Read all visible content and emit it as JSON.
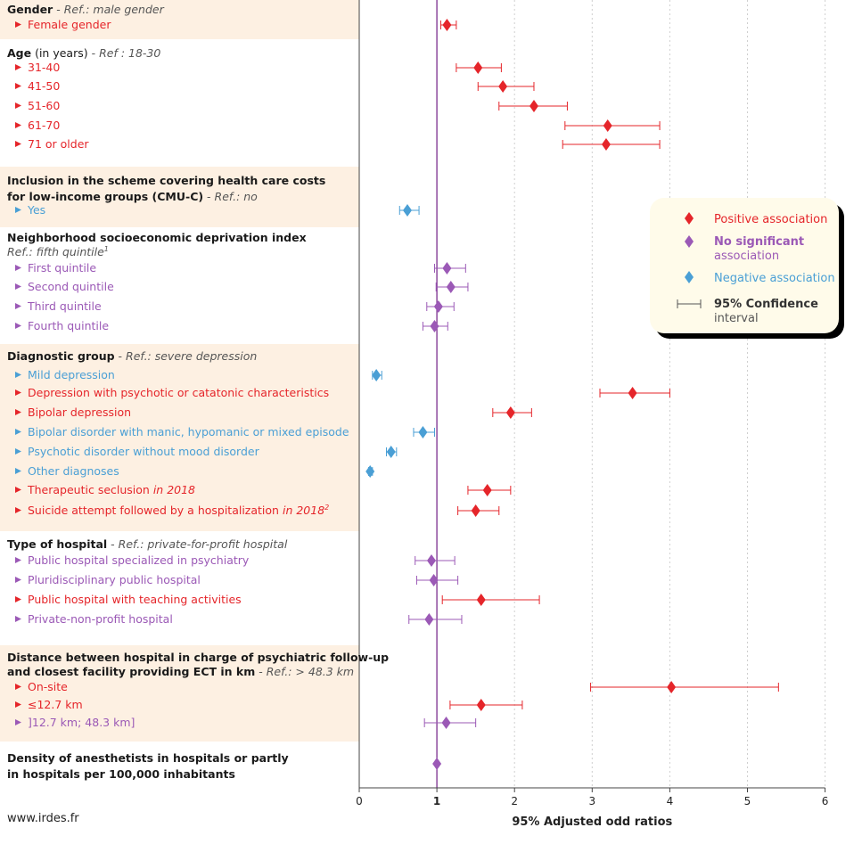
{
  "colors": {
    "positive": "#e5252a",
    "nonsignificant": "#9b59b6",
    "negative": "#4a9fd5",
    "band": "#fdf0e2",
    "refline": "#7b2f8e",
    "legend_bg": "#fffbea"
  },
  "icons": {
    "row_marker": "triangle-right-icon",
    "point_marker": "diamond-icon",
    "ci_marker": "error-bar-icon"
  },
  "footer": {
    "source": "www.irdes.fr"
  },
  "groups": [
    {
      "title": "Gender",
      "title_suffix": "",
      "ref": "Ref.: male gender",
      "line2": ""
    },
    {
      "title": "Age",
      "title_suffix": " (in years)",
      "ref": "Ref : 18-30",
      "line2": ""
    },
    {
      "title": "Inclusion in the scheme covering health care costs",
      "title_suffix": "",
      "ref": "",
      "line2": "for low-income groups (CMU-C)",
      "line2_ref": "Ref.: no"
    },
    {
      "title": "Neighborhood socioeconomic deprivation index",
      "title_suffix": "",
      "ref": "",
      "line2": "",
      "line2_ref": "Ref.: fifth quintile",
      "line2_sup": "1"
    },
    {
      "title": "Diagnostic group",
      "title_suffix": "",
      "ref": "Ref.: severe depression",
      "line2": ""
    },
    {
      "title": "Type of hospital",
      "title_suffix": "",
      "ref": "Ref.: private-for-profit hospital",
      "line2": ""
    },
    {
      "title": "Distance between hospital in charge of psychiatric follow-up",
      "title_suffix": "",
      "ref": "",
      "line2": "and closest facility providing ECT in km",
      "line2_ref": "Ref.: > 48.3 km"
    },
    {
      "title": "Density of anesthetists in hospitals or partly",
      "title_suffix": "",
      "ref": "",
      "line2": "in hospitals per 100,000 inhabitants",
      "nonsig_title": true
    }
  ],
  "legend": {
    "positive": "Positive association",
    "nonsig_1": "No significant",
    "nonsig_2": "association",
    "negative": "Negative association",
    "ci_1": "95% Confidence",
    "ci_2": "interval"
  },
  "chart_data": {
    "type": "forest",
    "xlabel": "95% Adjusted odd ratios",
    "xlim": [
      0,
      6
    ],
    "xticks": [
      "0",
      "1",
      "2",
      "3",
      "4",
      "5",
      "6"
    ],
    "reference_line": 1,
    "grid": "vertical dotted",
    "legend_position": "right",
    "rows": [
      {
        "group": 0,
        "label": "Female gender",
        "or": 1.13,
        "lo": 1.05,
        "hi": 1.25,
        "assoc": "positive"
      },
      {
        "group": 1,
        "label": "31-40",
        "or": 1.53,
        "lo": 1.25,
        "hi": 1.83,
        "assoc": "positive"
      },
      {
        "group": 1,
        "label": "41-50",
        "or": 1.85,
        "lo": 1.53,
        "hi": 2.25,
        "assoc": "positive"
      },
      {
        "group": 1,
        "label": "51-60",
        "or": 2.25,
        "lo": 1.8,
        "hi": 2.68,
        "assoc": "positive"
      },
      {
        "group": 1,
        "label": "61-70",
        "or": 3.2,
        "lo": 2.65,
        "hi": 3.87,
        "assoc": "positive"
      },
      {
        "group": 1,
        "label": "71 or older",
        "or": 3.18,
        "lo": 2.62,
        "hi": 3.87,
        "assoc": "positive"
      },
      {
        "group": 2,
        "label": "Yes",
        "or": 0.62,
        "lo": 0.52,
        "hi": 0.77,
        "assoc": "negative"
      },
      {
        "group": 3,
        "label": "First quintile",
        "or": 1.13,
        "lo": 0.97,
        "hi": 1.37,
        "assoc": "nonsignificant"
      },
      {
        "group": 3,
        "label": "Second quintile",
        "or": 1.18,
        "lo": 0.99,
        "hi": 1.4,
        "assoc": "nonsignificant"
      },
      {
        "group": 3,
        "label": "Third quintile",
        "or": 1.02,
        "lo": 0.87,
        "hi": 1.22,
        "assoc": "nonsignificant"
      },
      {
        "group": 3,
        "label": "Fourth quintile",
        "or": 0.97,
        "lo": 0.82,
        "hi": 1.14,
        "assoc": "nonsignificant"
      },
      {
        "group": 4,
        "label": "Mild depression",
        "or": 0.22,
        "lo": 0.17,
        "hi": 0.29,
        "assoc": "negative"
      },
      {
        "group": 4,
        "label": "Depression with psychotic or catatonic characteristics",
        "or": 3.52,
        "lo": 3.1,
        "hi": 4.0,
        "assoc": "positive"
      },
      {
        "group": 4,
        "label": "Bipolar depression",
        "or": 1.95,
        "lo": 1.72,
        "hi": 2.22,
        "assoc": "positive"
      },
      {
        "group": 4,
        "label": "Bipolar disorder with manic, hypomanic or mixed episode",
        "or": 0.82,
        "lo": 0.7,
        "hi": 0.97,
        "assoc": "negative"
      },
      {
        "group": 4,
        "label": "Psychotic disorder without mood disorder",
        "or": 0.41,
        "lo": 0.35,
        "hi": 0.48,
        "assoc": "negative"
      },
      {
        "group": 4,
        "label": "Other diagnoses",
        "or": 0.14,
        "lo": 0.12,
        "hi": 0.17,
        "assoc": "negative"
      },
      {
        "group": 4,
        "label": "Therapeutic seclusion",
        "label_suffix": "in 2018",
        "or": 1.65,
        "lo": 1.4,
        "hi": 1.95,
        "assoc": "positive"
      },
      {
        "group": 4,
        "label": "Suicide attempt followed by a hospitalization",
        "label_suffix": "in 2018",
        "label_sup": "2",
        "or": 1.5,
        "lo": 1.27,
        "hi": 1.8,
        "assoc": "positive"
      },
      {
        "group": 5,
        "label": "Public hospital specialized in psychiatry",
        "or": 0.93,
        "lo": 0.72,
        "hi": 1.23,
        "assoc": "nonsignificant"
      },
      {
        "group": 5,
        "label": "Pluridisciplinary public hospital",
        "or": 0.96,
        "lo": 0.74,
        "hi": 1.27,
        "assoc": "nonsignificant"
      },
      {
        "group": 5,
        "label": "Public hospital with teaching activities",
        "or": 1.57,
        "lo": 1.07,
        "hi": 2.32,
        "assoc": "positive"
      },
      {
        "group": 5,
        "label": "Private-non-profit hospital",
        "or": 0.9,
        "lo": 0.64,
        "hi": 1.32,
        "assoc": "nonsignificant"
      },
      {
        "group": 6,
        "label": "On-site",
        "or": 4.02,
        "lo": 2.98,
        "hi": 5.4,
        "assoc": "positive"
      },
      {
        "group": 6,
        "label": "≤12.7 km",
        "or": 1.57,
        "lo": 1.17,
        "hi": 2.1,
        "assoc": "positive"
      },
      {
        "group": 6,
        "label": "]12.7 km; 48.3 km]",
        "or": 1.12,
        "lo": 0.84,
        "hi": 1.5,
        "assoc": "nonsignificant"
      },
      {
        "group": 7,
        "label": "",
        "or": 1.0,
        "lo": 0.99,
        "hi": 1.01,
        "assoc": "nonsignificant"
      }
    ]
  }
}
